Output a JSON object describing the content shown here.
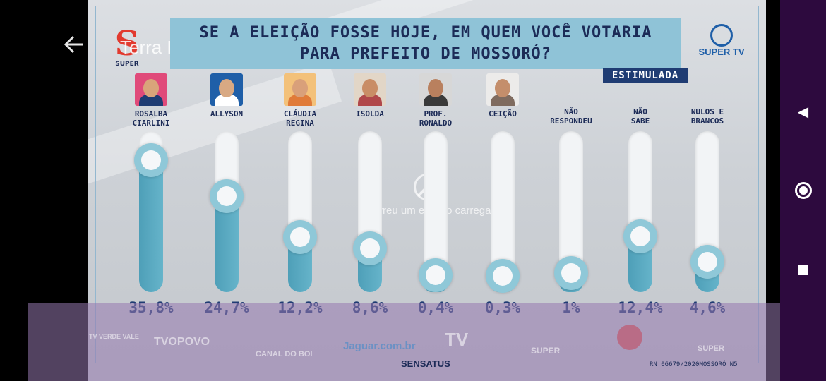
{
  "app": {
    "channel_title": "Terra Do Sal",
    "back_icon": "arrow-left-icon"
  },
  "poll": {
    "title_line1": "SE A ELEIÇÃO FOSSE HOJE, EM QUEM VOCÊ VOTARIA",
    "title_line2": "PARA PREFEITO DE MOSSORÓ?",
    "badge": "ESTIMULADA",
    "logo_left_text": "SUPER",
    "logo_right_text": "SUPER TV",
    "sensatus": "SENSATUS",
    "registration": "RN 06679/2020MOSSORÓ  N5"
  },
  "chart_data": {
    "type": "bar",
    "categories": [
      "ROSALBA CIARLINI",
      "ALLYSON",
      "CLÁUDIA REGINA",
      "ISOLDA",
      "PROF. RONALDO",
      "CEIÇÃO",
      "NÃO RESPONDEU",
      "NÃO SABE",
      "NULOS E BRANCOS"
    ],
    "values": [
      35.8,
      24.7,
      12.2,
      8.6,
      0.4,
      0.3,
      1,
      12.4,
      4.6
    ],
    "labels": [
      "35,8%",
      "24,7%",
      "12,2%",
      "8,6%",
      "0,4%",
      "0,3%",
      "1%",
      "12,4%",
      "4,6%"
    ],
    "ylim": [
      0,
      40
    ],
    "colors": {
      "fill": "#5aa9c0",
      "track": "#f2f4f6",
      "knob": "#8fc8d8",
      "text": "#1f3c73"
    }
  },
  "candidates": [
    {
      "name": "ROSALBA\nCIARLINI",
      "photo": true,
      "photo_bg": "#e04a7a",
      "skin": "#d9a47a",
      "cloth": "#1f3c73"
    },
    {
      "name": "ALLYSON",
      "photo": true,
      "photo_bg": "#1f5fa8",
      "skin": "#d8a983",
      "cloth": "#ffffff"
    },
    {
      "name": "CLÁUDIA\nREGINA",
      "photo": true,
      "photo_bg": "#f3c17a",
      "skin": "#d9a07a",
      "cloth": "#e07b39"
    },
    {
      "name": "ISOLDA",
      "photo": true,
      "photo_bg": "#e2d6c7",
      "skin": "#c98d66",
      "cloth": "#b0484b"
    },
    {
      "name": "PROF.\nRONALDO",
      "photo": true,
      "photo_bg": "#d7d7d7",
      "skin": "#b9805e",
      "cloth": "#3a3a3a"
    },
    {
      "name": "CEIÇÃO",
      "photo": true,
      "photo_bg": "#ecebea",
      "skin": "#c48e6b",
      "cloth": "#7f6b5f"
    },
    {
      "name": "NÃO\nRESPONDEU",
      "photo": false
    },
    {
      "name": "NÃO\nSABE",
      "photo": false
    },
    {
      "name": "NULOS E\nBRANCOS",
      "photo": false
    }
  ],
  "overlay": {
    "error_text": "Ocorreu um erro ao carregar",
    "error_icon": "error-circle-icon"
  },
  "footer": {
    "logos": [
      "TV VERDE VALE",
      "TVOPOVO",
      "CANAL DO BOI",
      "Jaguar.com.br",
      "TV",
      "SUPER",
      "",
      "SUPER"
    ]
  },
  "nav": {
    "back_icon": "triangle-back-icon",
    "home_icon": "circle-home-icon",
    "recents_icon": "square-recents-icon"
  }
}
